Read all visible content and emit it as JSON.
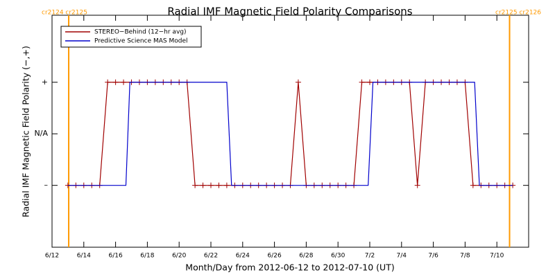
{
  "chart_data": {
    "type": "line",
    "title": "Radial IMF Magnetic Field Polarity Comparisons",
    "x_label": "Month/Day from 2012-06-12 to 2012-07-10 (UT)",
    "y_label": "Radial IMF Magnetic Field Polarity (−,+)",
    "xlim": [
      0,
      30
    ],
    "xticks": [
      {
        "value": 0,
        "label": "6/12"
      },
      {
        "value": 2,
        "label": "6/14"
      },
      {
        "value": 4,
        "label": "6/16"
      },
      {
        "value": 6,
        "label": "6/18"
      },
      {
        "value": 8,
        "label": "6/20"
      },
      {
        "value": 10,
        "label": "6/22"
      },
      {
        "value": 12,
        "label": "6/24"
      },
      {
        "value": 14,
        "label": "6/26"
      },
      {
        "value": 16,
        "label": "6/28"
      },
      {
        "value": 18,
        "label": "6/30"
      },
      {
        "value": 20,
        "label": "7/2"
      },
      {
        "value": 22,
        "label": "7/4"
      },
      {
        "value": 24,
        "label": "7/6"
      },
      {
        "value": 26,
        "label": "7/8"
      },
      {
        "value": 28,
        "label": "7/10"
      }
    ],
    "ylim": [
      -2.2,
      2.3
    ],
    "yticks": [
      {
        "value": -1,
        "label": "–"
      },
      {
        "value": 0,
        "label": "N/A"
      },
      {
        "value": 1,
        "label": "+"
      }
    ],
    "legend": "upper left",
    "markers": [
      {
        "x": 1.05,
        "label": "cr2124 cr2125",
        "color": "#ff9900"
      },
      {
        "x": 28.8,
        "label": "cr2125 cr2126",
        "color": "#ff9900"
      }
    ],
    "series": [
      {
        "name": "STEREO−Behind (12−hr avg)",
        "color": "#a00000",
        "symbol": "plus",
        "x": [
          1.0,
          1.5,
          2.0,
          2.5,
          3.0,
          3.5,
          4.0,
          4.5,
          5.0,
          5.5,
          6.0,
          6.5,
          7.0,
          7.5,
          8.0,
          8.5,
          9.0,
          9.5,
          10.0,
          10.5,
          11.0,
          11.5,
          12.0,
          12.5,
          13.0,
          13.5,
          14.0,
          14.5,
          15.0,
          15.5,
          16.0,
          16.5,
          17.0,
          17.5,
          18.0,
          18.5,
          19.0,
          19.5,
          20.0,
          20.5,
          21.0,
          21.5,
          22.0,
          22.5,
          23.0,
          23.5,
          24.0,
          24.5,
          25.0,
          25.5,
          26.0,
          26.5,
          27.0,
          27.5,
          28.0,
          28.5,
          29.0
        ],
        "values": [
          -1,
          -1,
          -1,
          -1,
          -1,
          1,
          1,
          1,
          1,
          1,
          1,
          1,
          1,
          1,
          1,
          1,
          -1,
          -1,
          -1,
          -1,
          -1,
          -1,
          -1,
          -1,
          -1,
          -1,
          -1,
          -1,
          -1,
          1,
          -1,
          -1,
          -1,
          -1,
          -1,
          -1,
          -1,
          1,
          1,
          1,
          1,
          1,
          1,
          1,
          -1,
          1,
          1,
          1,
          1,
          1,
          1,
          -1,
          -1,
          -1,
          -1,
          -1,
          -1
        ]
      },
      {
        "name": "Predictive Science MAS Model",
        "color": "#0000cc",
        "x": [
          1.0,
          4.65,
          4.9,
          11.0,
          11.3,
          19.9,
          20.2,
          26.6,
          26.9,
          29.0
        ],
        "values": [
          -1,
          -1,
          1,
          1,
          -1,
          -1,
          1,
          1,
          -1,
          -1
        ]
      }
    ]
  }
}
